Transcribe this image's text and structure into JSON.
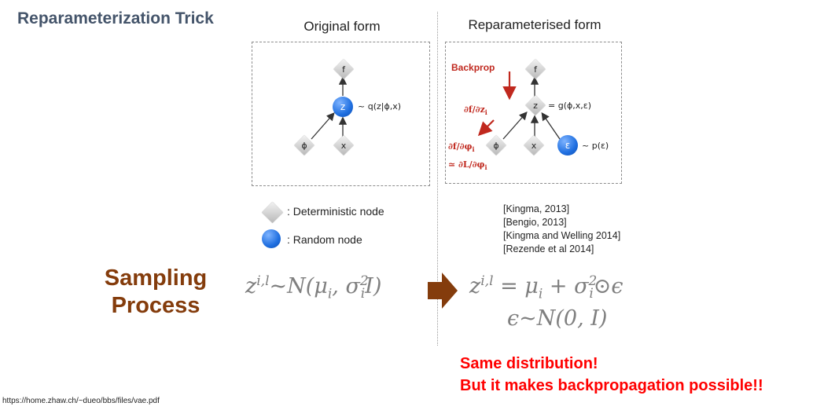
{
  "slide_title": "Reparameterization Trick",
  "left_panel": {
    "title": "Original form",
    "nodes": {
      "f": "f",
      "z": "z",
      "phi": "ϕ",
      "x": "x"
    },
    "z_label": "~ q(z|ϕ,x)"
  },
  "right_panel": {
    "title": "Reparameterised form",
    "backprop": "Backprop",
    "nodes": {
      "f": "f",
      "z": "z",
      "phi": "ϕ",
      "x": "x",
      "eps": "ε"
    },
    "z_label": "= g(ϕ,x,ε)",
    "eps_label": "~ p(ε)",
    "grad_fz": "∂f/∂z",
    "grad_fz_sub": "i",
    "grad_fphi": "∂f/∂φ",
    "grad_fphi_sub": "i",
    "grad_L": "≃ ∂L/∂φ",
    "grad_L_sub": "i"
  },
  "legend": {
    "deterministic": ": Deterministic node",
    "random": ": Random node"
  },
  "references": [
    "[Kingma, 2013]",
    "[Bengio, 2013]",
    "[Kingma and Welling 2014]",
    "[Rezende et al 2014]"
  ],
  "sampling": {
    "line1": "Sampling",
    "line2": "Process"
  },
  "formula_left": {
    "z": "z",
    "sup": "i,l",
    "tilde_n": "~N(μ",
    "mu_sub": "i",
    "comma_sigma": ", σ",
    "sigma_sup": "2",
    "sigma_sub": "i",
    "tail": "I)"
  },
  "formula_right": {
    "z": "z",
    "sup": "i,l",
    "eq_mu": " = μ",
    "mu_sub": "i",
    "plus_sigma": " + σ",
    "sigma_sup": "2",
    "sigma_sub": "i",
    "tail": "⊙ϵ",
    "line2": "ϵ~N(0, I)"
  },
  "notes": {
    "line1": "Same distribution!",
    "line2": "But it makes backpropagation possible!!"
  },
  "source": "https://home.zhaw.ch/~dueo/bbs/files/vae.pdf",
  "colors": {
    "title": "#44546a",
    "sampling": "#843c0c",
    "arrow": "#843c0c",
    "note": "#ff0000",
    "backprop": "#c0281e",
    "math": "#7f7f7f"
  }
}
